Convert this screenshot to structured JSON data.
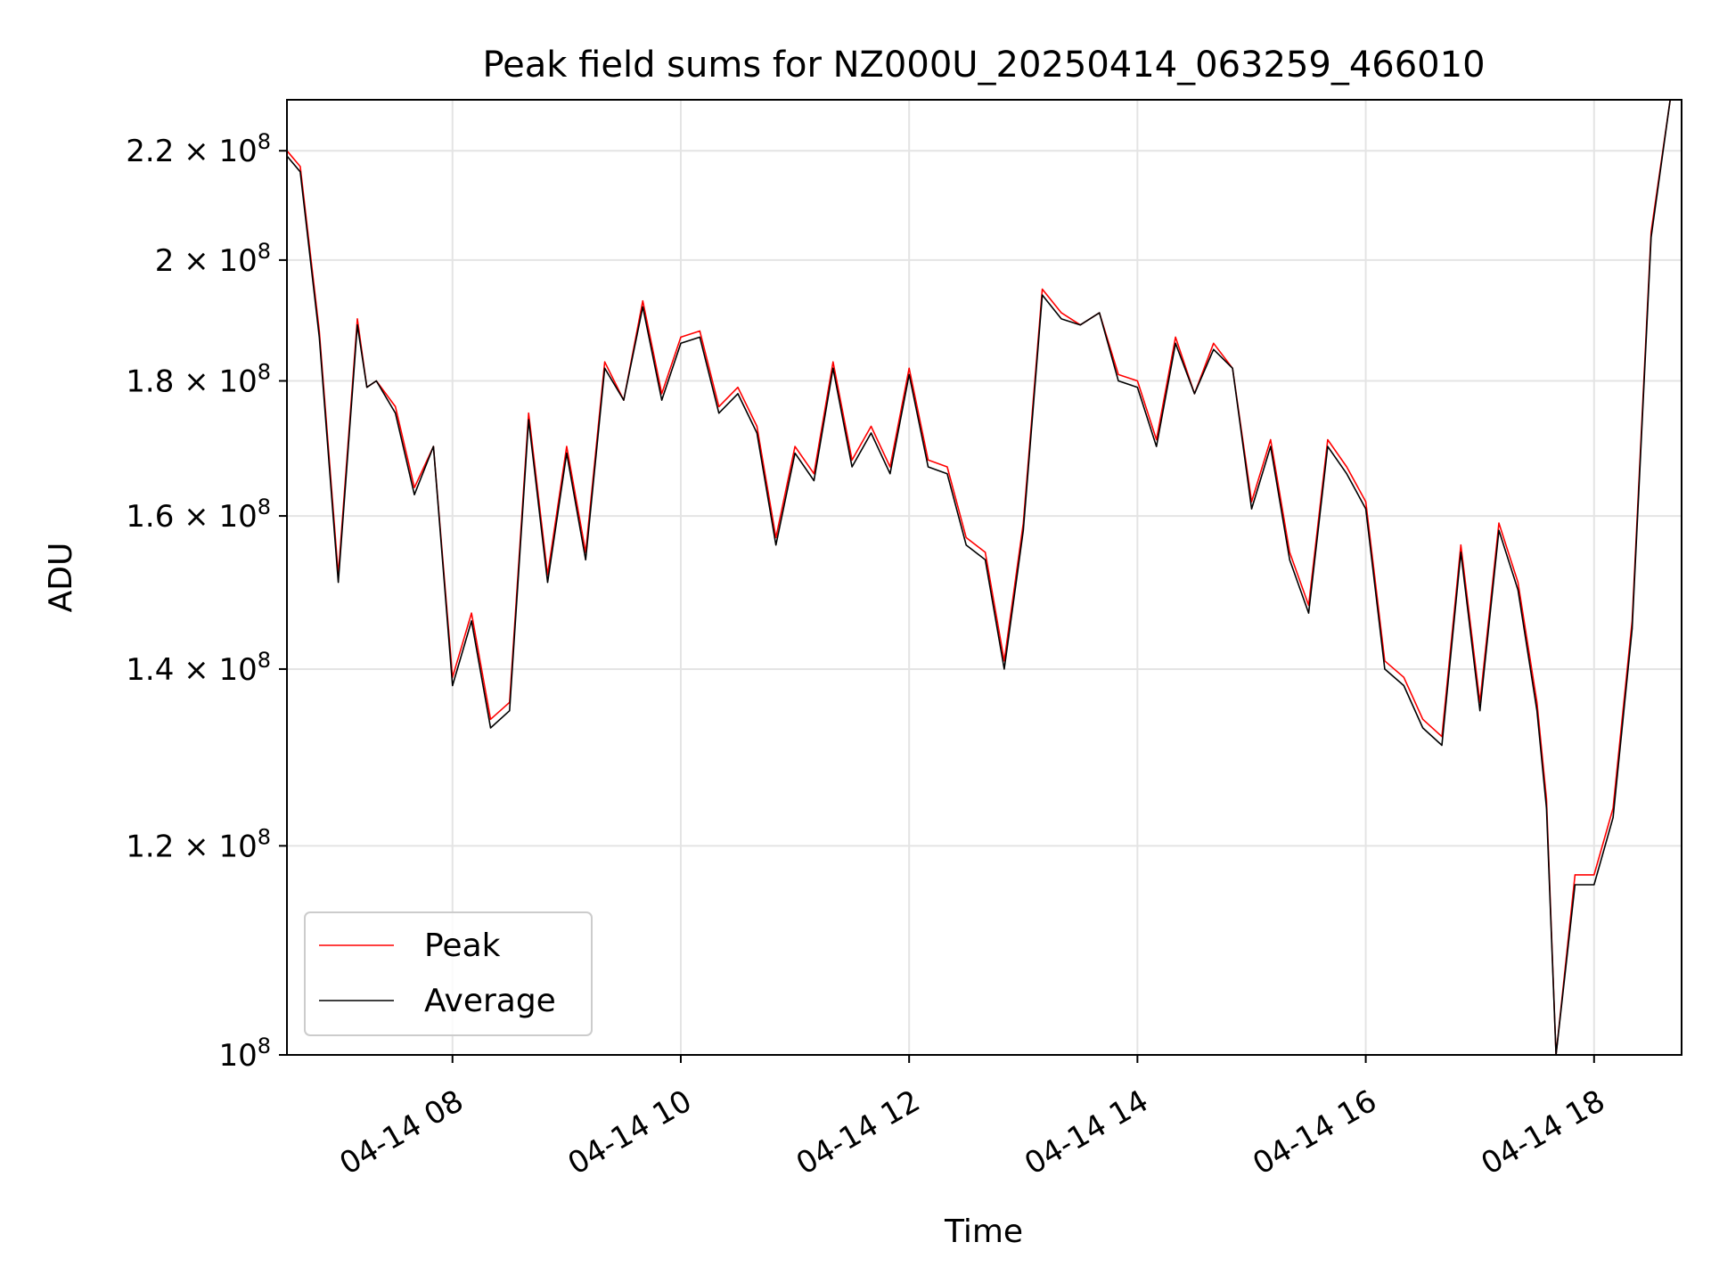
{
  "chart_data": {
    "type": "line",
    "title": "Peak field sums for NZ000U_20250414_063259_466010",
    "xlabel": "Time",
    "ylabel": "ADU",
    "yscale": "log",
    "ylim": [
      100000000,
      230000000
    ],
    "xlim": [
      "04-14 06:33",
      "04-14 18:46"
    ],
    "x_ticks": [
      "04-14 08",
      "04-14 10",
      "04-14 12",
      "04-14 14",
      "04-14 16",
      "04-14 18"
    ],
    "y_ticks": [
      {
        "value": 100000000,
        "mantissa": "",
        "exponent": "8",
        "base": "10"
      },
      {
        "value": 120000000,
        "mantissa": "1.2",
        "exponent": "8",
        "base": "10"
      },
      {
        "value": 140000000,
        "mantissa": "1.4",
        "exponent": "8",
        "base": "10"
      },
      {
        "value": 160000000,
        "mantissa": "1.6",
        "exponent": "8",
        "base": "10"
      },
      {
        "value": 180000000,
        "mantissa": "1.8",
        "exponent": "8",
        "base": "10"
      },
      {
        "value": 200000000,
        "mantissa": "2",
        "exponent": "8",
        "base": "10"
      },
      {
        "value": 220000000,
        "mantissa": "2.2",
        "exponent": "8",
        "base": "10"
      }
    ],
    "grid": true,
    "legend": "lower-left",
    "x": [
      "06:33",
      "06:40",
      "06:50",
      "07:00",
      "07:10",
      "07:15",
      "07:20",
      "07:30",
      "07:40",
      "07:50",
      "08:00",
      "08:10",
      "08:20",
      "08:30",
      "08:40",
      "08:50",
      "09:00",
      "09:10",
      "09:20",
      "09:30",
      "09:40",
      "09:50",
      "10:00",
      "10:10",
      "10:20",
      "10:30",
      "10:40",
      "10:50",
      "11:00",
      "11:10",
      "11:20",
      "11:30",
      "11:40",
      "11:50",
      "12:00",
      "12:10",
      "12:20",
      "12:30",
      "12:40",
      "12:50",
      "13:00",
      "13:10",
      "13:20",
      "13:30",
      "13:40",
      "13:50",
      "14:00",
      "14:10",
      "14:20",
      "14:30",
      "14:40",
      "14:50",
      "15:00",
      "15:10",
      "15:20",
      "15:30",
      "15:40",
      "15:50",
      "16:00",
      "16:10",
      "16:20",
      "16:30",
      "16:40",
      "16:50",
      "17:00",
      "17:10",
      "17:20",
      "17:30",
      "17:35",
      "17:40",
      "17:50",
      "18:00",
      "18:10",
      "18:20",
      "18:30",
      "18:40",
      "18:46"
    ],
    "series": [
      {
        "name": "Peak",
        "color": "#ff0000",
        "values": [
          220000000.0,
          217000000.0,
          188000000.0,
          152000000.0,
          190000000.0,
          179000000.0,
          180000000.0,
          176000000.0,
          164000000.0,
          170000000.0,
          139000000.0,
          147000000.0,
          134000000.0,
          136000000.0,
          175000000.0,
          152000000.0,
          170000000.0,
          155000000.0,
          183000000.0,
          177000000.0,
          193000000.0,
          178000000.0,
          187000000.0,
          188000000.0,
          176000000.0,
          179000000.0,
          173000000.0,
          157000000.0,
          170000000.0,
          166000000.0,
          183000000.0,
          168000000.0,
          173000000.0,
          167000000.0,
          182000000.0,
          168000000.0,
          167000000.0,
          157000000.0,
          155000000.0,
          141000000.0,
          159000000.0,
          195000000.0,
          191000000.0,
          189000000.0,
          191000000.0,
          181000000.0,
          180000000.0,
          171000000.0,
          187000000.0,
          178000000.0,
          186000000.0,
          182000000.0,
          162000000.0,
          171000000.0,
          155000000.0,
          148000000.0,
          171000000.0,
          167000000.0,
          162000000.0,
          141000000.0,
          139000000.0,
          134000000.0,
          132000000.0,
          156000000.0,
          136000000.0,
          159000000.0,
          151000000.0,
          136000000.0,
          125000000.0,
          100000000.0,
          117000000.0,
          117000000.0,
          124000000.0,
          146000000.0,
          205000000.0,
          230000000.0,
          230000000.0
        ]
      },
      {
        "name": "Average",
        "color": "#000000",
        "values": [
          219000000.0,
          216000000.0,
          187000000.0,
          151000000.0,
          189000000.0,
          179000000.0,
          180000000.0,
          175000000.0,
          163000000.0,
          170000000.0,
          138000000.0,
          146000000.0,
          133000000.0,
          135000000.0,
          174000000.0,
          151000000.0,
          169000000.0,
          154000000.0,
          182000000.0,
          177000000.0,
          192000000.0,
          177000000.0,
          186000000.0,
          187000000.0,
          175000000.0,
          178000000.0,
          172000000.0,
          156000000.0,
          169000000.0,
          165000000.0,
          182000000.0,
          167000000.0,
          172000000.0,
          166000000.0,
          181000000.0,
          167000000.0,
          166000000.0,
          156000000.0,
          154000000.0,
          140000000.0,
          158000000.0,
          194000000.0,
          190000000.0,
          189000000.0,
          191000000.0,
          180000000.0,
          179000000.0,
          170000000.0,
          186000000.0,
          178000000.0,
          185000000.0,
          182000000.0,
          161000000.0,
          170000000.0,
          154000000.0,
          147000000.0,
          170000000.0,
          166000000.0,
          161000000.0,
          140000000.0,
          138000000.0,
          133000000.0,
          131000000.0,
          155000000.0,
          135000000.0,
          158000000.0,
          150000000.0,
          135000000.0,
          124000000.0,
          100000000.0,
          116000000.0,
          116000000.0,
          123000000.0,
          145000000.0,
          204000000.0,
          230000000.0,
          230000000.0
        ]
      }
    ]
  }
}
